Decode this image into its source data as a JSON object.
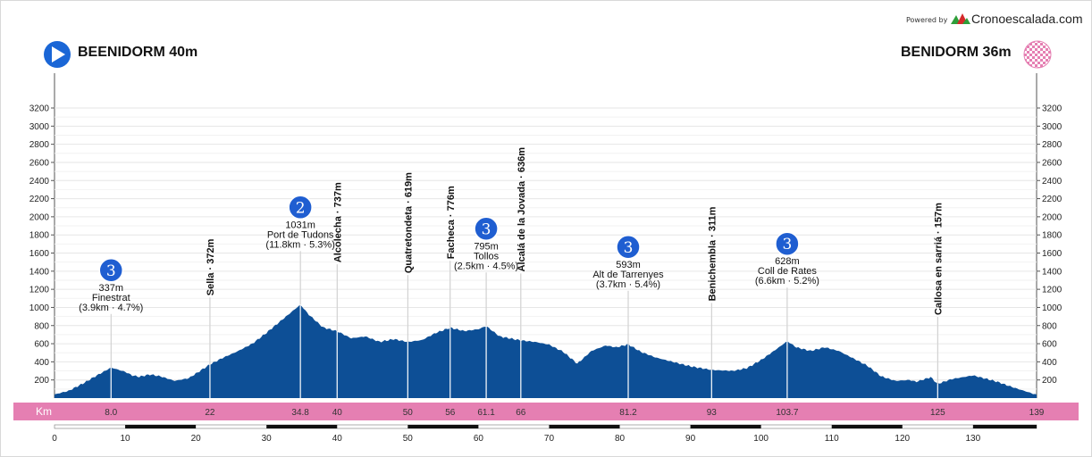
{
  "header": {
    "powered_by": "Powered by",
    "brand": "Cronoescalada.com",
    "start": "BEENIDORM 40m",
    "finish": "BENIDORM 36m"
  },
  "colors": {
    "profile_fill": "#0d4f96",
    "km_band": "#e57fb2",
    "category_badge": "#1f5ed1",
    "start_icon": "#1a66d6",
    "finish_flag": "#e57fb2"
  },
  "icons": {
    "start": "play-circle-icon",
    "finish": "checkered-flag-icon",
    "brand_logo": "mountains-logo-icon"
  },
  "chart_data": {
    "type": "area",
    "xlabel": "Km",
    "xlim": [
      0,
      139
    ],
    "ylim": [
      0,
      3200
    ],
    "y_ticks": [
      200,
      400,
      600,
      800,
      1000,
      1200,
      1400,
      1600,
      1800,
      2000,
      2200,
      2400,
      2600,
      2800,
      3000,
      3200
    ],
    "x_ticks": [
      0,
      10,
      20,
      30,
      40,
      50,
      60,
      70,
      80,
      90,
      100,
      110,
      120,
      130
    ],
    "grid": true,
    "profile": {
      "x": [
        0,
        2,
        4,
        6,
        8,
        10,
        11,
        12,
        13.5,
        15,
        17,
        19,
        21,
        22,
        24,
        26,
        28,
        30,
        32,
        34.8,
        36,
        38,
        40,
        42,
        44,
        46,
        48,
        50,
        52,
        54,
        56,
        58,
        60,
        61.1,
        63,
        66,
        68,
        70,
        72,
        74,
        76,
        78,
        79.5,
        81.2,
        83,
        85,
        88,
        90,
        93,
        96,
        98,
        100,
        102,
        103.7,
        105,
        107,
        109,
        111,
        113,
        115,
        117,
        119,
        121,
        122,
        124,
        125,
        127,
        130,
        133,
        136,
        139
      ],
      "y": [
        40,
        80,
        160,
        250,
        337,
        290,
        250,
        235,
        260,
        240,
        190,
        220,
        320,
        372,
        450,
        520,
        600,
        720,
        850,
        1031,
        920,
        780,
        737,
        660,
        680,
        620,
        650,
        619,
        640,
        720,
        776,
        740,
        760,
        795,
        680,
        636,
        620,
        590,
        510,
        380,
        520,
        580,
        560,
        593,
        510,
        450,
        390,
        350,
        311,
        300,
        330,
        420,
        530,
        628,
        560,
        520,
        560,
        520,
        440,
        360,
        240,
        190,
        200,
        180,
        230,
        157,
        210,
        250,
        190,
        110,
        36
      ]
    },
    "km_labels": [
      8.0,
      22,
      34.8,
      40,
      50,
      56,
      61.1,
      66,
      81.2,
      93,
      103.7,
      125,
      139
    ],
    "points": [
      {
        "km": 8.0,
        "alt": 337,
        "kind": "climb",
        "category": "3",
        "alt_label": "337m",
        "name": "Finestrat",
        "detail": "(3.9km · 4.7%)"
      },
      {
        "km": 22,
        "alt": 372,
        "kind": "vertical",
        "label": "Sella · 372m"
      },
      {
        "km": 34.8,
        "alt": 1031,
        "kind": "climb",
        "category": "2",
        "alt_label": "1031m",
        "name": "Port de Tudons",
        "detail": "(11.8km · 5.3%)"
      },
      {
        "km": 40,
        "alt": 737,
        "kind": "vertical",
        "label": "Alcolecha · 737m"
      },
      {
        "km": 50,
        "alt": 619,
        "kind": "vertical",
        "label": "Quatretondeta · 619m"
      },
      {
        "km": 56,
        "alt": 776,
        "kind": "vertical",
        "label": "Facheca · 776m"
      },
      {
        "km": 61.1,
        "alt": 795,
        "kind": "climb",
        "category": "3",
        "alt_label": "795m",
        "name": "Tollos",
        "detail": "(2.5km · 4.5%)"
      },
      {
        "km": 66,
        "alt": 636,
        "kind": "vertical",
        "label": "Alcalá de la Jovada · 636m"
      },
      {
        "km": 81.2,
        "alt": 593,
        "kind": "climb",
        "category": "3",
        "alt_label": "593m",
        "name": "Alt de Tarrenyes",
        "detail": "(3.7km · 5.4%)"
      },
      {
        "km": 93,
        "alt": 311,
        "kind": "vertical",
        "label": "Benichembla · 311m"
      },
      {
        "km": 103.7,
        "alt": 628,
        "kind": "climb",
        "category": "3",
        "alt_label": "628m",
        "name": "Coll de Rates",
        "detail": "(6.6km · 5.2%)"
      },
      {
        "km": 125,
        "alt": 157,
        "kind": "vertical",
        "label": "Callosa en sarriá · 157m"
      }
    ]
  }
}
